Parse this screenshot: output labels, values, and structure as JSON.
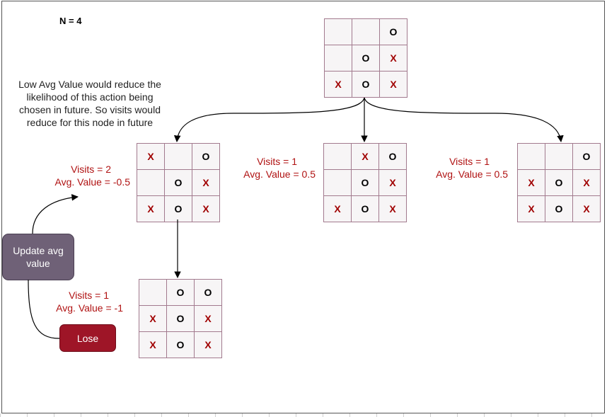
{
  "title": "N = 4",
  "note": [
    "Low Avg Value would reduce the",
    "likelihood of this action being",
    "chosen in future. So visits would",
    "reduce for this node in future"
  ],
  "boards": {
    "root": [
      "",
      "",
      "O",
      "",
      "O",
      "X",
      "X",
      "O",
      "X"
    ],
    "left": [
      "X",
      "",
      "O",
      "",
      "O",
      "X",
      "X",
      "O",
      "X"
    ],
    "middle": [
      "",
      "X",
      "O",
      "",
      "O",
      "X",
      "X",
      "O",
      "X"
    ],
    "right": [
      "",
      "",
      "O",
      "X",
      "O",
      "X",
      "X",
      "O",
      "X"
    ],
    "bottom": [
      "",
      "O",
      "O",
      "X",
      "O",
      "X",
      "X",
      "O",
      "X"
    ]
  },
  "stats": {
    "left": {
      "visits": "Visits = 2",
      "avg": "Avg. Value = -0.5"
    },
    "middle": {
      "visits": "Visits = 1",
      "avg": "Avg. Value = 0.5"
    },
    "right": {
      "visits": "Visits = 1",
      "avg": "Avg. Value = 0.5"
    },
    "bottom": {
      "visits": "Visits = 1",
      "avg": "Avg. Value = -1"
    }
  },
  "buttons": {
    "update": [
      "Update avg",
      "value"
    ],
    "lose": "Lose"
  },
  "colors": {
    "x_mark": "#a00000",
    "o_mark": "#000000",
    "grid": "#a27a8e",
    "stat_text": "#b01212",
    "update_button": "#6f6177",
    "lose_button": "#9e1527"
  }
}
